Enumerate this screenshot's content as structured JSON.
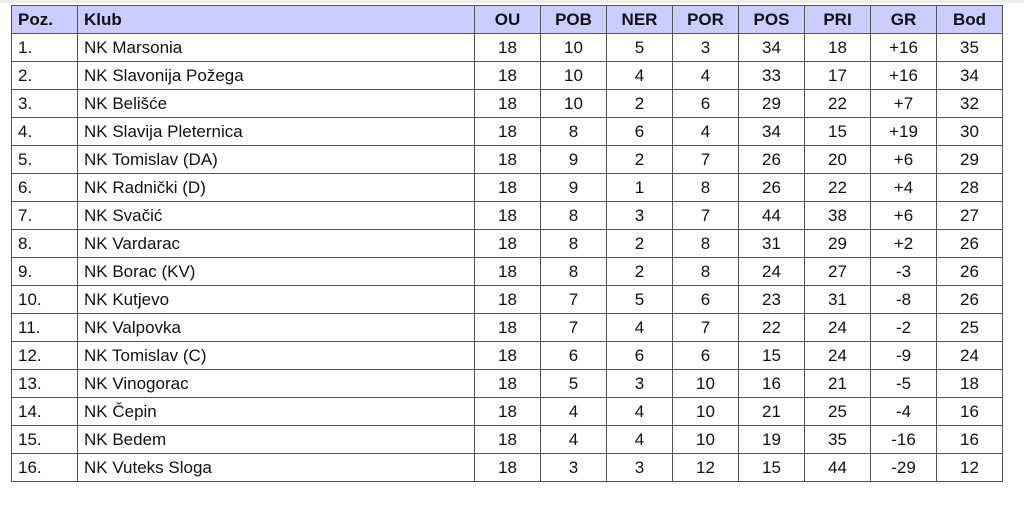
{
  "table": {
    "headers": [
      "Poz.",
      "Klub",
      "OU",
      "POB",
      "NER",
      "POR",
      "POS",
      "PRI",
      "GR",
      "Bod"
    ],
    "header_bg": "#ccccff",
    "rows": [
      [
        "1.",
        "NK Marsonia",
        "18",
        "10",
        "5",
        "3",
        "34",
        "18",
        "+16",
        "35"
      ],
      [
        "2.",
        "NK Slavonija Požega",
        "18",
        "10",
        "4",
        "4",
        "33",
        "17",
        "+16",
        "34"
      ],
      [
        "3.",
        "NK Belišće",
        "18",
        "10",
        "2",
        "6",
        "29",
        "22",
        "+7",
        "32"
      ],
      [
        "4.",
        "NK Slavija Pleternica",
        "18",
        "8",
        "6",
        "4",
        "34",
        "15",
        "+19",
        "30"
      ],
      [
        "5.",
        "NK Tomislav (DA)",
        "18",
        "9",
        "2",
        "7",
        "26",
        "20",
        "+6",
        "29"
      ],
      [
        "6.",
        "NK Radnički (D)",
        "18",
        "9",
        "1",
        "8",
        "26",
        "22",
        "+4",
        "28"
      ],
      [
        "7.",
        "NK Svačić",
        "18",
        "8",
        "3",
        "7",
        "44",
        "38",
        "+6",
        "27"
      ],
      [
        "8.",
        "NK Vardarac",
        "18",
        "8",
        "2",
        "8",
        "31",
        "29",
        "+2",
        "26"
      ],
      [
        "9.",
        "NK Borac (KV)",
        "18",
        "8",
        "2",
        "8",
        "24",
        "27",
        "-3",
        "26"
      ],
      [
        "10.",
        "NK Kutjevo",
        "18",
        "7",
        "5",
        "6",
        "23",
        "31",
        "-8",
        "26"
      ],
      [
        "11.",
        "NK Valpovka",
        "18",
        "7",
        "4",
        "7",
        "22",
        "24",
        "-2",
        "25"
      ],
      [
        "12.",
        "NK Tomislav (C)",
        "18",
        "6",
        "6",
        "6",
        "15",
        "24",
        "-9",
        "24"
      ],
      [
        "13.",
        "NK Vinogorac",
        "18",
        "5",
        "3",
        "10",
        "16",
        "21",
        "-5",
        "18"
      ],
      [
        "14.",
        "NK Čepin",
        "18",
        "4",
        "4",
        "10",
        "21",
        "25",
        "-4",
        "16"
      ],
      [
        "15.",
        "NK Bedem",
        "18",
        "4",
        "4",
        "10",
        "19",
        "35",
        "-16",
        "16"
      ],
      [
        "16.",
        "NK Vuteks Sloga",
        "18",
        "3",
        "3",
        "12",
        "15",
        "44",
        "-29",
        "12"
      ]
    ]
  }
}
